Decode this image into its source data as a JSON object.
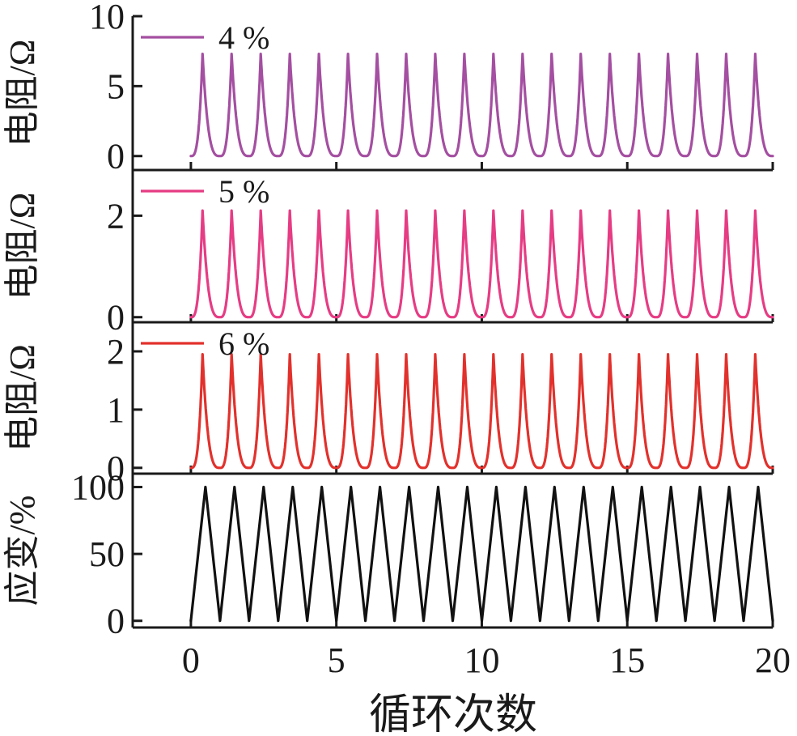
{
  "chart_data": [
    {
      "type": "line",
      "ylabel": "电阻/Ω",
      "ylim": [
        -1,
        10
      ],
      "yticks": [
        0,
        5,
        10
      ],
      "xlim": [
        -2,
        20
      ],
      "legend": {
        "label": "4 %",
        "placement": "top-left",
        "color": "#a44fa1"
      },
      "series": [
        {
          "name": "4 %",
          "color": "#a44fa1",
          "cycle_start": 0,
          "cycles": 20,
          "peak_value": 7.3,
          "min_value": 0,
          "peak_times": [
            0.4,
            1.4,
            2.4,
            3.4,
            4.4,
            5.4,
            6.4,
            7.4,
            8.4,
            9.4,
            10.4,
            11.4,
            12.4,
            13.4,
            14.4,
            15.4,
            16.4,
            17.4,
            18.4,
            19.4
          ]
        }
      ]
    },
    {
      "type": "line",
      "ylabel": "电阻/Ω",
      "ylim": [
        -0.1,
        2.9
      ],
      "yticks": [
        0,
        2
      ],
      "xlim": [
        -2,
        20
      ],
      "legend": {
        "label": "5 %",
        "placement": "top-left",
        "color": "#e63c84"
      },
      "series": [
        {
          "name": "5 %",
          "color": "#e63c84",
          "cycle_start": 0,
          "cycles": 20,
          "peak_value": 2.1,
          "min_value": 0,
          "peak_times": [
            0.4,
            1.4,
            2.4,
            3.4,
            4.4,
            5.4,
            6.4,
            7.4,
            8.4,
            9.4,
            10.4,
            11.4,
            12.4,
            13.4,
            14.4,
            15.4,
            16.4,
            17.4,
            18.4,
            19.4
          ]
        }
      ]
    },
    {
      "type": "line",
      "ylabel": "电阻/Ω",
      "ylim": [
        -0.1,
        2.5
      ],
      "yticks": [
        0,
        1,
        2
      ],
      "xlim": [
        -2,
        20
      ],
      "legend": {
        "label": "6 %",
        "placement": "top-left",
        "color": "#e2312c"
      },
      "series": [
        {
          "name": "6 %",
          "color": "#e2312c",
          "cycle_start": 0,
          "cycles": 20,
          "peak_value": 1.95,
          "min_value": 0,
          "peak_times": [
            0.4,
            1.4,
            2.4,
            3.4,
            4.4,
            5.4,
            6.4,
            7.4,
            8.4,
            9.4,
            10.4,
            11.4,
            12.4,
            13.4,
            14.4,
            15.4,
            16.4,
            17.4,
            18.4,
            19.4
          ]
        }
      ]
    },
    {
      "type": "line",
      "ylabel": "应变/%",
      "ylim": [
        -5,
        110
      ],
      "yticks": [
        0,
        50,
        100
      ],
      "xlim": [
        -2,
        20
      ],
      "xticks": [
        0,
        5,
        10,
        15,
        20
      ],
      "xlabel": "循环次数",
      "series": [
        {
          "color": "#111111",
          "cycle_start": 0,
          "cycles": 20,
          "peak_value": 100,
          "min_value": 0,
          "peak_times": [
            0.5,
            1.5,
            2.5,
            3.5,
            4.5,
            5.5,
            6.5,
            7.5,
            8.5,
            9.5,
            10.5,
            11.5,
            12.5,
            13.5,
            14.5,
            15.5,
            16.5,
            17.5,
            18.5,
            19.5
          ]
        }
      ]
    }
  ]
}
